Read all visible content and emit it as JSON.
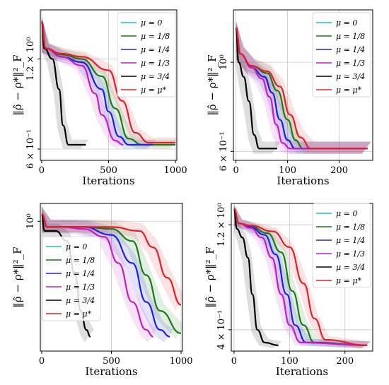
{
  "colors": {
    "mu_0": "#1fbfbf",
    "mu_1_8": "#1a7a1a",
    "mu_1_4": "#1f1fe0",
    "mu_1_3": "#c21fc2",
    "mu_3_4": "#000000",
    "mu_star": "#e0202a"
  },
  "chart_data": [
    {
      "type": "line",
      "xlabel": "Iterations",
      "ylabel": "‖ρ̂ − ρ*‖²_F",
      "xlim": [
        -10,
        1010
      ],
      "y_scale": "log",
      "ylim": [
        0.55,
        1.75
      ],
      "xticks": [
        0,
        500,
        1000
      ],
      "xtick_labels": [
        "0",
        "500",
        "1000"
      ],
      "yticks": [
        0.6,
        1.2
      ],
      "ytick_labels": [
        "6 × 10⁻¹",
        "1.2 × 10⁰"
      ],
      "grid": true,
      "legend_position": "top-right",
      "series": [
        {
          "name": "μ = 0",
          "color_key": "mu_0",
          "shaded": false,
          "x": [
            0,
            340
          ],
          "y": [
            1.6,
            0.6
          ]
        },
        {
          "name": "μ = 1/8",
          "color_key": "mu_1_8",
          "shaded": true,
          "x": [
            0,
            30,
            150,
            300,
            450,
            550,
            650,
            750,
            1000
          ],
          "y": [
            1.6,
            1.3,
            1.24,
            1.2,
            1.05,
            0.82,
            0.65,
            0.62,
            0.62
          ]
        },
        {
          "name": "μ = 1/4",
          "color_key": "mu_1_4",
          "shaded": true,
          "x": [
            0,
            30,
            150,
            300,
            450,
            500,
            580,
            650,
            830
          ],
          "y": [
            1.6,
            1.3,
            1.22,
            1.17,
            0.95,
            0.8,
            0.66,
            0.62,
            0.62
          ]
        },
        {
          "name": "μ = 1/3",
          "color_key": "mu_1_3",
          "shaded": true,
          "x": [
            0,
            30,
            150,
            300,
            400,
            450,
            550,
            610
          ],
          "y": [
            1.6,
            1.3,
            1.22,
            1.14,
            0.92,
            0.78,
            0.64,
            0.62
          ]
        },
        {
          "name": "μ = 3/4",
          "color_key": "mu_3_4",
          "shaded": true,
          "x": [
            0,
            20,
            80,
            130,
            160,
            200,
            330
          ],
          "y": [
            1.6,
            1.3,
            1.2,
            0.95,
            0.72,
            0.62,
            0.62
          ]
        },
        {
          "name": "μ = μ*",
          "color_key": "mu_star",
          "shaded": true,
          "x": [
            0,
            30,
            150,
            300,
            500,
            600,
            700,
            800,
            1000
          ],
          "y": [
            1.6,
            1.3,
            1.25,
            1.22,
            1.1,
            0.87,
            0.68,
            0.63,
            0.63
          ]
        }
      ]
    },
    {
      "type": "line",
      "xlabel": "Iterations",
      "ylabel": "‖ρ̂ − ρ*‖²_F",
      "xlim": [
        -5,
        265
      ],
      "y_scale": "log",
      "ylim": [
        0.57,
        1.35
      ],
      "xticks": [
        0,
        100,
        200
      ],
      "xtick_labels": [
        "0",
        "100",
        "200"
      ],
      "yticks": [
        0.6,
        1.0
      ],
      "ytick_labels": [
        "6 × 10⁻¹",
        "10⁰"
      ],
      "grid": true,
      "legend_position": "top-right",
      "series": [
        {
          "name": "μ = 0",
          "color_key": "mu_0",
          "shaded": false,
          "x": [
            0,
            255
          ],
          "y": [
            1.22,
            0.61
          ]
        },
        {
          "name": "μ = 1/8",
          "color_key": "mu_1_8",
          "shaded": true,
          "x": [
            0,
            8,
            30,
            60,
            80,
            100,
            115,
            130,
            255
          ],
          "y": [
            1.22,
            1.05,
            0.98,
            0.94,
            0.85,
            0.72,
            0.64,
            0.61,
            0.61
          ]
        },
        {
          "name": "μ = 1/4",
          "color_key": "mu_1_4",
          "shaded": true,
          "x": [
            0,
            8,
            30,
            55,
            70,
            85,
            100,
            115,
            255
          ],
          "y": [
            1.22,
            1.05,
            0.97,
            0.92,
            0.84,
            0.72,
            0.64,
            0.61,
            0.61
          ]
        },
        {
          "name": "μ = 1/3",
          "color_key": "mu_1_3",
          "shaded": true,
          "x": [
            0,
            8,
            30,
            50,
            65,
            78,
            90,
            105,
            255
          ],
          "y": [
            1.22,
            1.05,
            0.97,
            0.91,
            0.82,
            0.7,
            0.63,
            0.61,
            0.61
          ]
        },
        {
          "name": "μ = 3/4",
          "color_key": "mu_3_4",
          "shaded": true,
          "x": [
            0,
            5,
            15,
            25,
            35,
            45,
            80
          ],
          "y": [
            1.22,
            1.0,
            0.92,
            0.8,
            0.66,
            0.61,
            0.61
          ]
        },
        {
          "name": "μ = μ*",
          "color_key": "mu_star",
          "shaded": true,
          "x": [
            0,
            8,
            30,
            60,
            85,
            105,
            125,
            145,
            255
          ],
          "y": [
            1.22,
            1.05,
            0.98,
            0.95,
            0.87,
            0.74,
            0.65,
            0.61,
            0.61
          ]
        }
      ]
    },
    {
      "type": "line",
      "xlabel": "Iterations",
      "ylabel": "‖ρ̂ − ρ*‖²_F",
      "xlim": [
        -10,
        1010
      ],
      "y_scale": "log",
      "ylim": [
        0.5,
        1.1
      ],
      "xticks": [
        0,
        500,
        1000
      ],
      "xtick_labels": [
        "0",
        "500",
        "1000"
      ],
      "yticks": [
        1.0
      ],
      "ytick_labels": [
        "10⁰"
      ],
      "grid": true,
      "legend_position": "center-left",
      "series": [
        {
          "name": "μ = 0",
          "color_key": "mu_0",
          "shaded": false,
          "x": [
            0,
            950
          ],
          "y": [
            1.04,
            0.52
          ]
        },
        {
          "name": "μ = 1/8",
          "color_key": "mu_1_8",
          "shaded": true,
          "x": [
            0,
            40,
            150,
            300,
            500,
            650,
            750,
            850,
            1000
          ],
          "y": [
            1.04,
            0.97,
            0.97,
            0.97,
            0.96,
            0.9,
            0.75,
            0.62,
            0.55
          ]
        },
        {
          "name": "μ = 1/4",
          "color_key": "mu_1_4",
          "shaded": true,
          "x": [
            0,
            40,
            150,
            300,
            500,
            650,
            750,
            850,
            920
          ],
          "y": [
            1.04,
            0.97,
            0.97,
            0.97,
            0.93,
            0.8,
            0.65,
            0.56,
            0.54
          ]
        },
        {
          "name": "μ = 1/3",
          "color_key": "mu_1_3",
          "shaded": true,
          "x": [
            0,
            40,
            150,
            300,
            450,
            550,
            650,
            750,
            800
          ],
          "y": [
            1.04,
            0.97,
            0.97,
            0.96,
            0.92,
            0.8,
            0.65,
            0.56,
            0.54
          ]
        },
        {
          "name": "μ = 3/4",
          "color_key": "mu_3_4",
          "shaded": true,
          "x": [
            0,
            20,
            100,
            180,
            240,
            280,
            320,
            350
          ],
          "y": [
            1.04,
            0.95,
            0.95,
            0.9,
            0.75,
            0.62,
            0.56,
            0.54
          ]
        },
        {
          "name": "μ = μ*",
          "color_key": "mu_star",
          "shaded": true,
          "x": [
            0,
            40,
            150,
            300,
            500,
            700,
            800,
            900,
            1000
          ],
          "y": [
            1.04,
            0.97,
            0.97,
            0.97,
            0.97,
            0.95,
            0.87,
            0.74,
            0.64
          ]
        }
      ]
    },
    {
      "type": "line",
      "xlabel": "Iterations",
      "ylabel": "‖ρ̂ − ρ*‖²_F",
      "xlim": [
        -5,
        250
      ],
      "y_scale": "log",
      "ylim": [
        0.32,
        1.5
      ],
      "xticks": [
        0,
        100,
        200
      ],
      "xtick_labels": [
        "0",
        "100",
        "200"
      ],
      "yticks": [
        0.4,
        1.2
      ],
      "ytick_labels": [
        "4 × 10⁻¹",
        "1.2 × 10⁰"
      ],
      "grid": true,
      "legend_position": "top-right",
      "series": [
        {
          "name": "μ = 0",
          "color_key": "mu_0",
          "shaded": false,
          "x": [
            0,
            240
          ],
          "y": [
            1.42,
            0.34
          ]
        },
        {
          "name": "μ = 1/8",
          "color_key": "mu_1_8",
          "shaded": true,
          "x": [
            0,
            8,
            30,
            60,
            85,
            105,
            125,
            145,
            240
          ],
          "y": [
            1.42,
            1.22,
            1.18,
            1.1,
            0.9,
            0.6,
            0.42,
            0.35,
            0.34
          ]
        },
        {
          "name": "μ = 1/4",
          "color_key": "mu_1_4",
          "shaded": true,
          "x": [
            0,
            8,
            30,
            55,
            75,
            95,
            110,
            130,
            240
          ],
          "y": [
            1.42,
            1.22,
            1.17,
            1.08,
            0.88,
            0.58,
            0.42,
            0.35,
            0.34
          ]
        },
        {
          "name": "μ = 1/3",
          "color_key": "mu_1_3",
          "shaded": true,
          "x": [
            0,
            8,
            30,
            50,
            68,
            85,
            100,
            120,
            240
          ],
          "y": [
            1.42,
            1.22,
            1.16,
            1.05,
            0.85,
            0.58,
            0.42,
            0.35,
            0.34
          ]
        },
        {
          "name": "μ = 3/4",
          "color_key": "mu_3_4",
          "shaded": true,
          "x": [
            0,
            5,
            15,
            25,
            33,
            42,
            55,
            80
          ],
          "y": [
            1.42,
            1.15,
            1.05,
            0.85,
            0.58,
            0.4,
            0.35,
            0.34
          ]
        },
        {
          "name": "μ = μ*",
          "color_key": "mu_star",
          "shaded": true,
          "x": [
            0,
            8,
            30,
            70,
            100,
            125,
            145,
            165,
            240
          ],
          "y": [
            1.42,
            1.22,
            1.19,
            1.12,
            0.95,
            0.65,
            0.45,
            0.36,
            0.34
          ]
        }
      ]
    }
  ]
}
